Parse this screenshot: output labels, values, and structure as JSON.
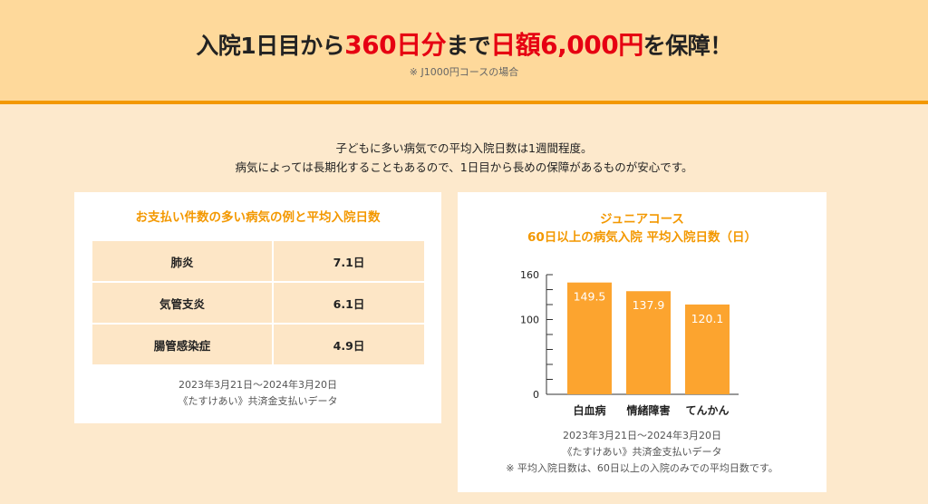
{
  "header": {
    "title_parts": [
      "入院1日目から",
      "360日分",
      "まで",
      "日額6,000円",
      "を保障！"
    ],
    "note": "※ J1000円コースの場合"
  },
  "intro": [
    "子どもに多い病気での平均入院日数は1週間程度。",
    "病気によっては長期化することもあるので、1日目から長めの保障があるものが安心です。"
  ],
  "left_card": {
    "title": "お支払い件数の多い病気の例と平均入院日数",
    "rows": [
      {
        "disease": "肺炎",
        "days": "7.1日"
      },
      {
        "disease": "気管支炎",
        "days": "6.1日"
      },
      {
        "disease": "腸管感染症",
        "days": "4.9日"
      }
    ],
    "source": [
      "2023年3月21日～2024年3月20日",
      "《たすけあい》共済金支払いデータ"
    ]
  },
  "right_card": {
    "title": [
      "ジュニアコース",
      "60日以上の病気入院 平均入院日数（日）"
    ],
    "source": [
      "2023年3月21日～2024年3月20日",
      "《たすけあい》共済金支払いデータ",
      "※ 平均入院日数は、60日以上の入院のみでの平均日数です。"
    ]
  },
  "chart_data": {
    "type": "bar",
    "categories": [
      "白血病",
      "情緒障害",
      "てんかん"
    ],
    "values": [
      149.5,
      137.9,
      120.1
    ],
    "data_labels": [
      "149.5",
      "137.9",
      "120.1"
    ],
    "ylim": [
      0,
      160
    ],
    "yticks": [
      "0",
      "100",
      "160"
    ],
    "minor_tick_step": 20,
    "bar_color": "#fca42f",
    "grid": false
  },
  "colors": {
    "accent": "#f39800",
    "red": "#e60012",
    "header_bg": "#fed99b",
    "page_bg": "#fde9cc"
  }
}
